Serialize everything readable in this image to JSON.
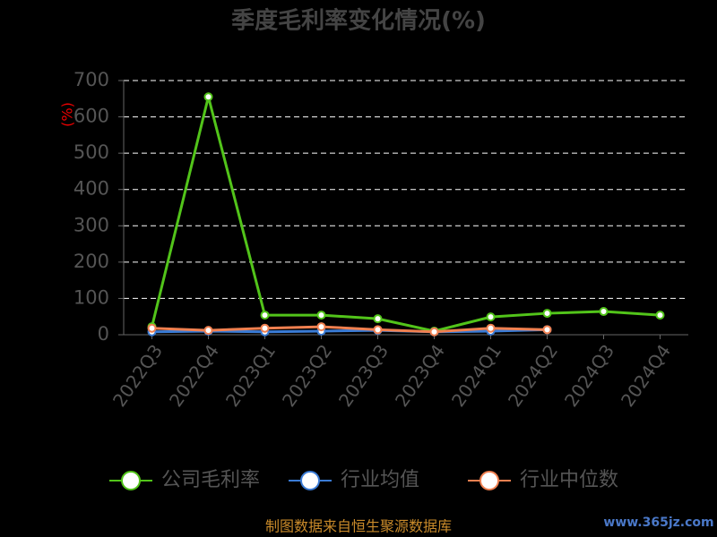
{
  "chart_data": {
    "type": "line",
    "title": "季度毛利率变化情况(%)",
    "y_label": "(%)",
    "categories": [
      "2022Q3",
      "2022Q4",
      "2023Q1",
      "2023Q2",
      "2023Q3",
      "2023Q4",
      "2024Q1",
      "2024Q2",
      "2024Q3",
      "2024Q4"
    ],
    "series": [
      {
        "name": "公司毛利率",
        "color": "#52c41a",
        "values": [
          22,
          655,
          54,
          54,
          44,
          10,
          49,
          59,
          64,
          54
        ]
      },
      {
        "name": "行业均值",
        "color": "#3a7bd5",
        "values": [
          8,
          10,
          8,
          10,
          12,
          8,
          10,
          14,
          null,
          null
        ]
      },
      {
        "name": "行业中位数",
        "color": "#f08050",
        "values": [
          18,
          12,
          18,
          22,
          14,
          8,
          18,
          14,
          null,
          null
        ]
      }
    ],
    "ylim": [
      0,
      700
    ],
    "yticks": [
      0,
      100,
      200,
      300,
      400,
      500,
      600,
      700
    ],
    "grid": true,
    "source": "制图数据来自恒生聚源数据库",
    "watermark": "www.365jz.com"
  }
}
